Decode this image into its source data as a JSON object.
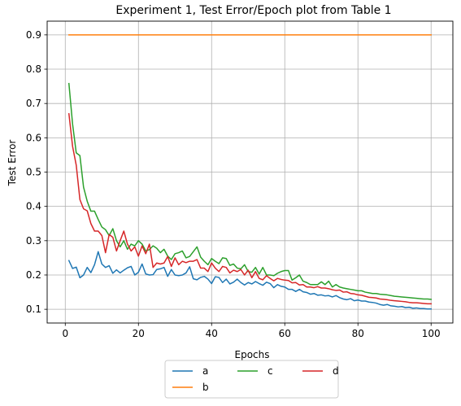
{
  "chart_data": {
    "type": "line",
    "title": "Experiment 1, Test Error/Epoch plot from Table 1",
    "xlabel": "Epochs",
    "ylabel": "Test Error",
    "xlim": [
      -4.95,
      105.95
    ],
    "ylim": [
      0.06,
      0.94
    ],
    "xticks": [
      0,
      20,
      40,
      60,
      80,
      100
    ],
    "yticks": [
      0.1,
      0.2,
      0.3,
      0.4,
      0.5,
      0.6,
      0.7,
      0.8,
      0.9
    ],
    "xtick_labels": [
      "0",
      "20",
      "40",
      "60",
      "80",
      "100"
    ],
    "ytick_labels": [
      "0.1",
      "0.2",
      "0.3",
      "0.4",
      "0.5",
      "0.6",
      "0.7",
      "0.8",
      "0.9"
    ],
    "grid": true,
    "legend_placement": "below plot, center, 3 columns",
    "x": [
      1,
      2,
      3,
      4,
      5,
      6,
      7,
      8,
      9,
      10,
      11,
      12,
      13,
      14,
      15,
      16,
      17,
      18,
      19,
      20,
      21,
      22,
      23,
      24,
      25,
      26,
      27,
      28,
      29,
      30,
      31,
      32,
      33,
      34,
      35,
      36,
      37,
      38,
      39,
      40,
      41,
      42,
      43,
      44,
      45,
      46,
      47,
      48,
      49,
      50,
      51,
      52,
      53,
      54,
      55,
      56,
      57,
      58,
      59,
      60,
      61,
      62,
      63,
      64,
      65,
      66,
      67,
      68,
      69,
      70,
      71,
      72,
      73,
      74,
      75,
      76,
      77,
      78,
      79,
      80,
      81,
      82,
      83,
      84,
      85,
      86,
      87,
      88,
      89,
      90,
      91,
      92,
      93,
      94,
      95,
      96,
      97,
      98,
      99,
      100
    ],
    "series": [
      {
        "name": "a",
        "color": "#1f77b4",
        "values": [
          0.242,
          0.219,
          0.223,
          0.192,
          0.2,
          0.222,
          0.207,
          0.23,
          0.268,
          0.232,
          0.222,
          0.227,
          0.205,
          0.215,
          0.206,
          0.214,
          0.221,
          0.225,
          0.2,
          0.208,
          0.232,
          0.203,
          0.2,
          0.201,
          0.216,
          0.218,
          0.222,
          0.196,
          0.216,
          0.2,
          0.198,
          0.2,
          0.206,
          0.224,
          0.189,
          0.186,
          0.193,
          0.196,
          0.188,
          0.175,
          0.195,
          0.193,
          0.178,
          0.188,
          0.174,
          0.179,
          0.188,
          0.178,
          0.171,
          0.178,
          0.174,
          0.181,
          0.175,
          0.17,
          0.179,
          0.175,
          0.163,
          0.172,
          0.167,
          0.165,
          0.158,
          0.158,
          0.152,
          0.158,
          0.151,
          0.149,
          0.144,
          0.146,
          0.141,
          0.142,
          0.139,
          0.14,
          0.136,
          0.14,
          0.134,
          0.13,
          0.128,
          0.131,
          0.125,
          0.127,
          0.124,
          0.124,
          0.121,
          0.12,
          0.118,
          0.114,
          0.112,
          0.114,
          0.11,
          0.109,
          0.107,
          0.108,
          0.105,
          0.106,
          0.103,
          0.104,
          0.102,
          0.102,
          0.101,
          0.101
        ]
      },
      {
        "name": "b",
        "color": "#ff7f0e",
        "values": [
          0.9,
          0.9,
          0.9,
          0.9,
          0.9,
          0.9,
          0.9,
          0.9,
          0.9,
          0.9,
          0.9,
          0.9,
          0.9,
          0.9,
          0.9,
          0.9,
          0.9,
          0.9,
          0.9,
          0.9,
          0.9,
          0.9,
          0.9,
          0.9,
          0.9,
          0.9,
          0.9,
          0.9,
          0.9,
          0.9,
          0.9,
          0.9,
          0.9,
          0.9,
          0.9,
          0.9,
          0.9,
          0.9,
          0.9,
          0.9,
          0.9,
          0.9,
          0.9,
          0.9,
          0.9,
          0.9,
          0.9,
          0.9,
          0.9,
          0.9,
          0.9,
          0.9,
          0.9,
          0.9,
          0.9,
          0.9,
          0.9,
          0.9,
          0.9,
          0.9,
          0.9,
          0.9,
          0.9,
          0.9,
          0.9,
          0.9,
          0.9,
          0.9,
          0.9,
          0.9,
          0.9,
          0.9,
          0.9,
          0.9,
          0.9,
          0.9,
          0.9,
          0.9,
          0.9,
          0.9,
          0.9,
          0.9,
          0.9,
          0.9,
          0.9,
          0.9,
          0.9,
          0.9,
          0.9,
          0.9,
          0.9,
          0.9,
          0.9,
          0.9,
          0.9,
          0.9,
          0.9,
          0.9,
          0.9,
          0.9
        ]
      },
      {
        "name": "c",
        "color": "#2ca02c",
        "values": [
          0.758,
          0.64,
          0.556,
          0.548,
          0.456,
          0.415,
          0.386,
          0.386,
          0.362,
          0.34,
          0.332,
          0.315,
          0.335,
          0.3,
          0.282,
          0.3,
          0.275,
          0.29,
          0.285,
          0.3,
          0.29,
          0.27,
          0.274,
          0.285,
          0.278,
          0.265,
          0.275,
          0.255,
          0.245,
          0.262,
          0.265,
          0.27,
          0.25,
          0.254,
          0.268,
          0.282,
          0.252,
          0.24,
          0.23,
          0.248,
          0.24,
          0.233,
          0.25,
          0.248,
          0.228,
          0.232,
          0.22,
          0.218,
          0.23,
          0.21,
          0.208,
          0.222,
          0.203,
          0.222,
          0.2,
          0.2,
          0.198,
          0.205,
          0.21,
          0.213,
          0.213,
          0.185,
          0.192,
          0.2,
          0.182,
          0.178,
          0.172,
          0.172,
          0.172,
          0.18,
          0.172,
          0.182,
          0.165,
          0.172,
          0.165,
          0.162,
          0.16,
          0.158,
          0.156,
          0.154,
          0.154,
          0.15,
          0.148,
          0.146,
          0.146,
          0.144,
          0.143,
          0.142,
          0.14,
          0.138,
          0.137,
          0.136,
          0.135,
          0.134,
          0.133,
          0.132,
          0.131,
          0.13,
          0.13,
          0.129
        ]
      },
      {
        "name": "d",
        "color": "#d62728",
        "values": [
          0.67,
          0.575,
          0.52,
          0.42,
          0.393,
          0.387,
          0.35,
          0.328,
          0.328,
          0.315,
          0.265,
          0.318,
          0.31,
          0.27,
          0.3,
          0.328,
          0.29,
          0.27,
          0.282,
          0.255,
          0.285,
          0.262,
          0.29,
          0.222,
          0.235,
          0.232,
          0.235,
          0.254,
          0.225,
          0.25,
          0.23,
          0.24,
          0.236,
          0.24,
          0.24,
          0.245,
          0.22,
          0.22,
          0.21,
          0.235,
          0.22,
          0.21,
          0.225,
          0.222,
          0.206,
          0.214,
          0.21,
          0.216,
          0.2,
          0.214,
          0.192,
          0.21,
          0.19,
          0.186,
          0.198,
          0.19,
          0.183,
          0.19,
          0.187,
          0.185,
          0.184,
          0.177,
          0.178,
          0.171,
          0.172,
          0.165,
          0.165,
          0.163,
          0.166,
          0.162,
          0.162,
          0.16,
          0.157,
          0.155,
          0.156,
          0.15,
          0.151,
          0.146,
          0.145,
          0.142,
          0.141,
          0.138,
          0.135,
          0.134,
          0.133,
          0.13,
          0.129,
          0.128,
          0.126,
          0.125,
          0.124,
          0.123,
          0.122,
          0.12,
          0.119,
          0.119,
          0.118,
          0.117,
          0.116,
          0.116
        ]
      }
    ]
  }
}
